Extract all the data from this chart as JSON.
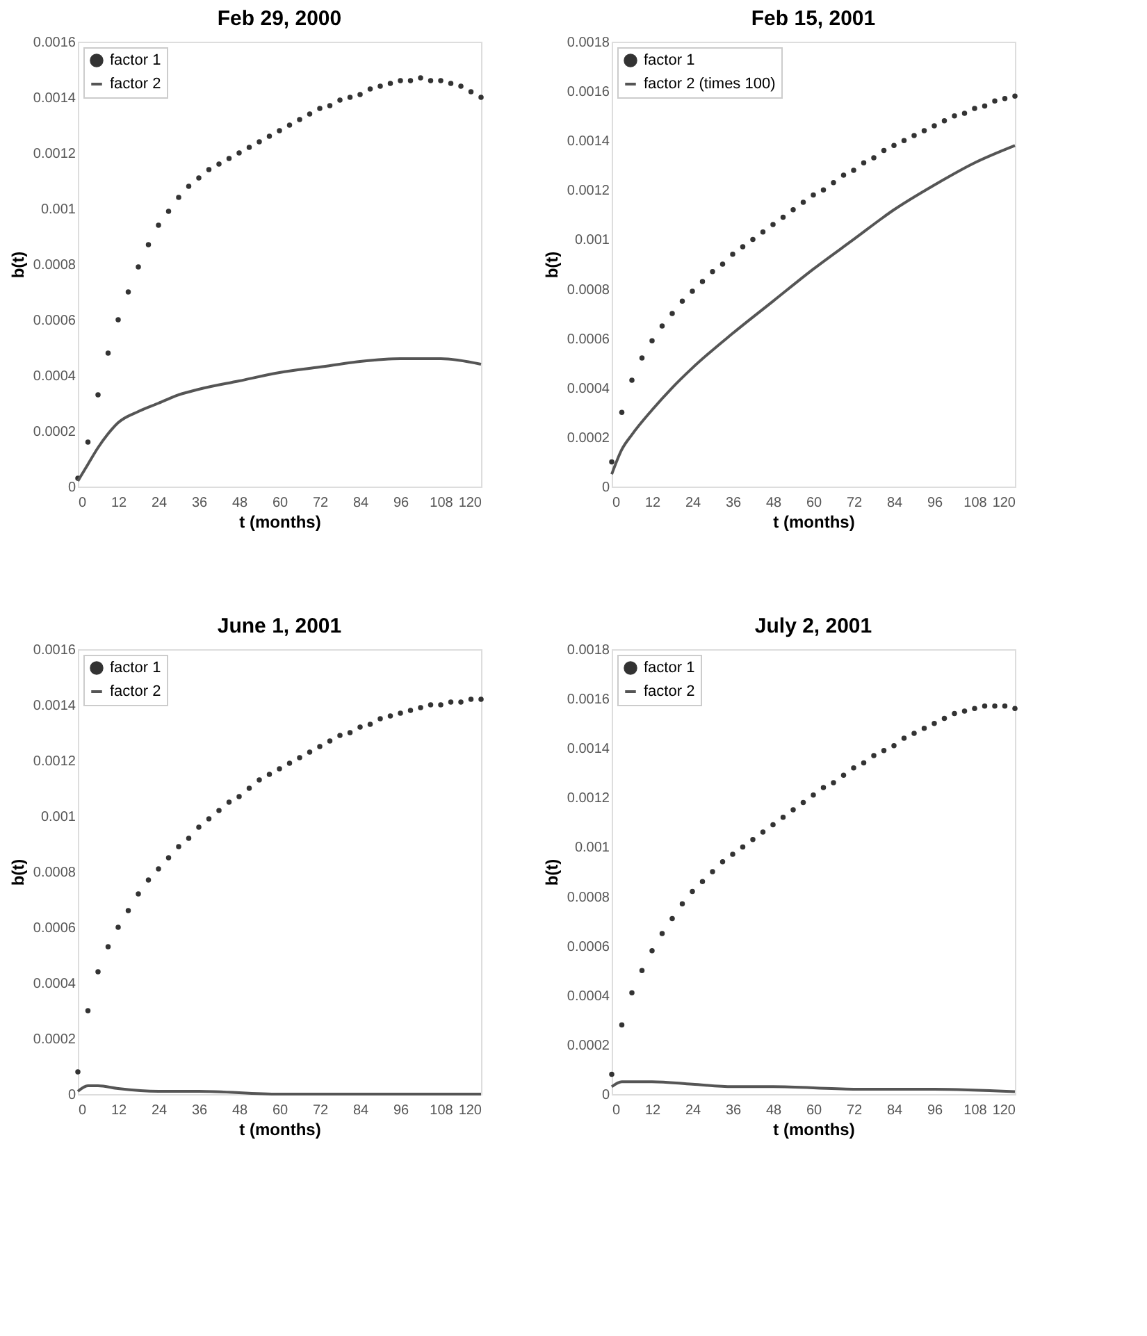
{
  "chart_data": [
    {
      "type": "line",
      "title": "Feb 29, 2000",
      "xlabel": "t (months)",
      "ylabel": "b(t)",
      "xlim": [
        0,
        120
      ],
      "xticks": [
        0,
        12,
        24,
        36,
        48,
        60,
        72,
        84,
        96,
        108,
        120
      ],
      "ylim": [
        0,
        0.0016
      ],
      "yticks": [
        0,
        0.0002,
        0.0004,
        0.0006,
        0.0008,
        0.001,
        0.0012,
        0.0014,
        0.0016
      ],
      "grid": false,
      "legend": "top left",
      "series": [
        {
          "name": "factor 1",
          "type": "scatter",
          "marker": "circle",
          "color": "#333333",
          "x": [
            0,
            3,
            6,
            9,
            12,
            15,
            18,
            21,
            24,
            27,
            30,
            33,
            36,
            39,
            42,
            45,
            48,
            51,
            54,
            57,
            60,
            63,
            66,
            69,
            72,
            75,
            78,
            81,
            84,
            87,
            90,
            93,
            96,
            99,
            102,
            105,
            108,
            111,
            114,
            117,
            120
          ],
          "values": [
            3e-05,
            0.00016,
            0.00033,
            0.00048,
            0.0006,
            0.0007,
            0.00079,
            0.00087,
            0.00094,
            0.00099,
            0.00104,
            0.00108,
            0.00111,
            0.00114,
            0.00116,
            0.00118,
            0.0012,
            0.00122,
            0.00124,
            0.00126,
            0.00128,
            0.0013,
            0.00132,
            0.00134,
            0.00136,
            0.00137,
            0.00139,
            0.0014,
            0.00141,
            0.00143,
            0.00144,
            0.00145,
            0.00146,
            0.00146,
            0.00147,
            0.00146,
            0.00146,
            0.00145,
            0.00144,
            0.00142,
            0.0014
          ]
        },
        {
          "name": "factor 2",
          "color": "#555555",
          "x": [
            0,
            3,
            6,
            9,
            12,
            18,
            24,
            30,
            36,
            48,
            60,
            72,
            84,
            96,
            108,
            120
          ],
          "values": [
            2e-05,
            8e-05,
            0.00014,
            0.00019,
            0.00023,
            0.00027,
            0.0003,
            0.00033,
            0.00035,
            0.00038,
            0.00041,
            0.00043,
            0.00045,
            0.00046,
            0.00046,
            0.00044
          ]
        }
      ]
    },
    {
      "type": "line",
      "title": "Feb 15, 2001",
      "xlabel": "t (months)",
      "ylabel": "b(t)",
      "xlim": [
        0,
        120
      ],
      "xticks": [
        0,
        12,
        24,
        36,
        48,
        60,
        72,
        84,
        96,
        108,
        120
      ],
      "ylim": [
        0,
        0.0018
      ],
      "yticks": [
        0,
        0.0002,
        0.0004,
        0.0006,
        0.0008,
        0.001,
        0.0012,
        0.0014,
        0.0016,
        0.0018
      ],
      "grid": false,
      "legend": "top left",
      "series": [
        {
          "name": "factor 1",
          "type": "scatter",
          "marker": "circle",
          "color": "#333333",
          "x": [
            0,
            3,
            6,
            9,
            12,
            15,
            18,
            21,
            24,
            27,
            30,
            33,
            36,
            39,
            42,
            45,
            48,
            51,
            54,
            57,
            60,
            63,
            66,
            69,
            72,
            75,
            78,
            81,
            84,
            87,
            90,
            93,
            96,
            99,
            102,
            105,
            108,
            111,
            114,
            117,
            120
          ],
          "values": [
            0.0001,
            0.0003,
            0.00043,
            0.00052,
            0.00059,
            0.00065,
            0.0007,
            0.00075,
            0.00079,
            0.00083,
            0.00087,
            0.0009,
            0.00094,
            0.00097,
            0.001,
            0.00103,
            0.00106,
            0.00109,
            0.00112,
            0.00115,
            0.00118,
            0.0012,
            0.00123,
            0.00126,
            0.00128,
            0.00131,
            0.00133,
            0.00136,
            0.00138,
            0.0014,
            0.00142,
            0.00144,
            0.00146,
            0.00148,
            0.0015,
            0.00151,
            0.00153,
            0.00154,
            0.00156,
            0.00157,
            0.00158
          ]
        },
        {
          "name": "factor 2 (times 100)",
          "color": "#555555",
          "x": [
            0,
            3,
            6,
            12,
            18,
            24,
            36,
            48,
            60,
            72,
            84,
            96,
            108,
            120
          ],
          "values": [
            5e-05,
            0.00015,
            0.00021,
            0.00031,
            0.0004,
            0.00048,
            0.00062,
            0.00075,
            0.00088,
            0.001,
            0.00112,
            0.00122,
            0.00131,
            0.00138
          ]
        }
      ]
    },
    {
      "type": "line",
      "title": "June 1, 2001",
      "xlabel": "t (months)",
      "ylabel": "b(t)",
      "xlim": [
        0,
        120
      ],
      "xticks": [
        0,
        12,
        24,
        36,
        48,
        60,
        72,
        84,
        96,
        108,
        120
      ],
      "ylim": [
        0,
        0.0016
      ],
      "yticks": [
        0,
        0.0002,
        0.0004,
        0.0006,
        0.0008,
        0.001,
        0.0012,
        0.0014,
        0.0016
      ],
      "grid": false,
      "legend": "top left",
      "series": [
        {
          "name": "factor 1",
          "type": "scatter",
          "marker": "circle",
          "color": "#333333",
          "x": [
            0,
            3,
            6,
            9,
            12,
            15,
            18,
            21,
            24,
            27,
            30,
            33,
            36,
            39,
            42,
            45,
            48,
            51,
            54,
            57,
            60,
            63,
            66,
            69,
            72,
            75,
            78,
            81,
            84,
            87,
            90,
            93,
            96,
            99,
            102,
            105,
            108,
            111,
            114,
            117,
            120
          ],
          "values": [
            8e-05,
            0.0003,
            0.00044,
            0.00053,
            0.0006,
            0.00066,
            0.00072,
            0.00077,
            0.00081,
            0.00085,
            0.00089,
            0.00092,
            0.00096,
            0.00099,
            0.00102,
            0.00105,
            0.00107,
            0.0011,
            0.00113,
            0.00115,
            0.00117,
            0.00119,
            0.00121,
            0.00123,
            0.00125,
            0.00127,
            0.00129,
            0.0013,
            0.00132,
            0.00133,
            0.00135,
            0.00136,
            0.00137,
            0.00138,
            0.00139,
            0.0014,
            0.0014,
            0.00141,
            0.00141,
            0.00142,
            0.00142
          ]
        },
        {
          "name": "factor 2",
          "color": "#555555",
          "x": [
            0,
            3,
            6,
            12,
            24,
            36,
            60,
            120
          ],
          "values": [
            1e-05,
            3e-05,
            3e-05,
            2e-05,
            1e-05,
            1e-05,
            0,
            0
          ]
        }
      ]
    },
    {
      "type": "line",
      "title": "July 2, 2001",
      "xlabel": "t (months)",
      "ylabel": "b(t)",
      "xlim": [
        0,
        120
      ],
      "xticks": [
        0,
        12,
        24,
        36,
        48,
        60,
        72,
        84,
        96,
        108,
        120
      ],
      "ylim": [
        0,
        0.0018
      ],
      "yticks": [
        0,
        0.0002,
        0.0004,
        0.0006,
        0.0008,
        0.001,
        0.0012,
        0.0014,
        0.0016,
        0.0018
      ],
      "grid": false,
      "legend": "top left",
      "series": [
        {
          "name": "factor 1",
          "type": "scatter",
          "marker": "circle",
          "color": "#333333",
          "x": [
            0,
            3,
            6,
            9,
            12,
            15,
            18,
            21,
            24,
            27,
            30,
            33,
            36,
            39,
            42,
            45,
            48,
            51,
            54,
            57,
            60,
            63,
            66,
            69,
            72,
            75,
            78,
            81,
            84,
            87,
            90,
            93,
            96,
            99,
            102,
            105,
            108,
            111,
            114,
            117,
            120
          ],
          "values": [
            8e-05,
            0.00028,
            0.00041,
            0.0005,
            0.00058,
            0.00065,
            0.00071,
            0.00077,
            0.00082,
            0.00086,
            0.0009,
            0.00094,
            0.00097,
            0.001,
            0.00103,
            0.00106,
            0.00109,
            0.00112,
            0.00115,
            0.00118,
            0.00121,
            0.00124,
            0.00126,
            0.00129,
            0.00132,
            0.00134,
            0.00137,
            0.00139,
            0.00141,
            0.00144,
            0.00146,
            0.00148,
            0.0015,
            0.00152,
            0.00154,
            0.00155,
            0.00156,
            0.00157,
            0.00157,
            0.00157,
            0.00156
          ]
        },
        {
          "name": "factor 2",
          "color": "#555555",
          "x": [
            0,
            3,
            6,
            12,
            24,
            36,
            48,
            72,
            96,
            120
          ],
          "values": [
            3e-05,
            5e-05,
            5e-05,
            5e-05,
            4e-05,
            3e-05,
            3e-05,
            2e-05,
            2e-05,
            1e-05
          ]
        }
      ]
    }
  ]
}
